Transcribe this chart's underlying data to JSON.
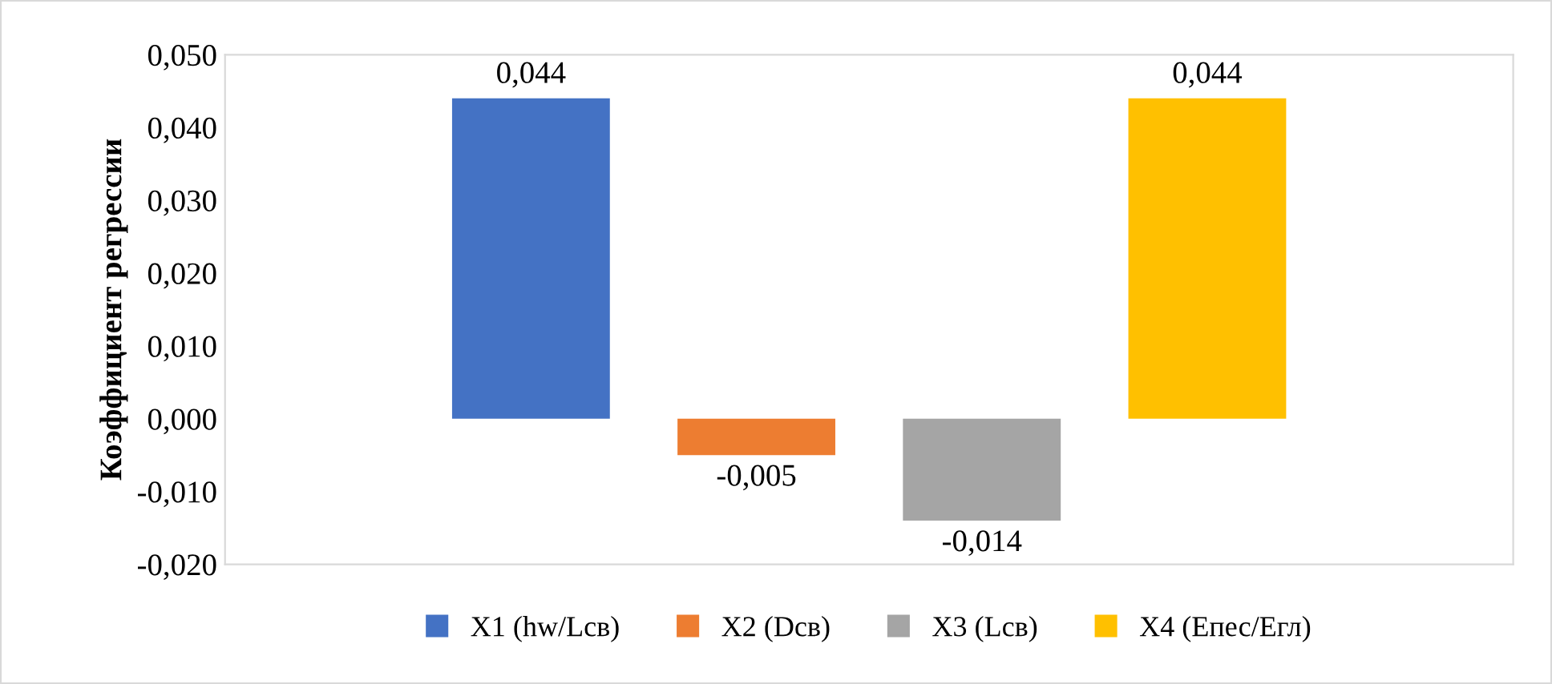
{
  "chart_data": {
    "type": "bar",
    "ylabel": "Коэффициент регрессии",
    "categories": [
      null
    ],
    "series": [
      {
        "name": "X1 (hw/Lсв)",
        "color": "#4472c4",
        "values": [
          0.044
        ],
        "value_labels": [
          "0,044"
        ]
      },
      {
        "name": "X2 (Dсв)",
        "color": "#ed7d31",
        "values": [
          -0.005
        ],
        "value_labels": [
          "-0,005"
        ]
      },
      {
        "name": "X3 (Lсв)",
        "color": "#a5a5a5",
        "values": [
          -0.014
        ],
        "value_labels": [
          "-0,014"
        ]
      },
      {
        "name": "X4 (Епес/Егл)",
        "color": "#ffc000",
        "values": [
          0.044
        ],
        "value_labels": [
          "0,044"
        ]
      }
    ],
    "ylim": [
      -0.02,
      0.05
    ],
    "yticks": [
      {
        "value": -0.02,
        "label": "-0,020"
      },
      {
        "value": -0.01,
        "label": "-0,010"
      },
      {
        "value": 0,
        "label": "0,000"
      },
      {
        "value": 0.01,
        "label": "0,010"
      },
      {
        "value": 0.02,
        "label": "0,020"
      },
      {
        "value": 0.03,
        "label": "0,030"
      },
      {
        "value": 0.04,
        "label": "0,040"
      },
      {
        "value": 0.05,
        "label": "0,050"
      }
    ],
    "legend": "bottom",
    "grid": false
  }
}
